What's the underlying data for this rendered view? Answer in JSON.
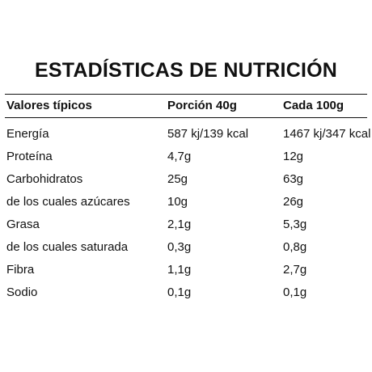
{
  "title": "ESTADÍSTICAS DE NUTRICIÓN",
  "table": {
    "headers": [
      "Valores típicos",
      "Porción 40g",
      "Cada 100g"
    ],
    "rows": [
      [
        "Energía",
        "587 kj/139 kcal",
        "1467 kj/347 kcal"
      ],
      [
        "Proteína",
        "4,7g",
        "12g"
      ],
      [
        "Carbohidratos",
        "25g",
        "63g"
      ],
      [
        "de los cuales azúcares",
        "10g",
        "26g"
      ],
      [
        "Grasa",
        "2,1g",
        "5,3g"
      ],
      [
        "de los cuales saturada",
        "0,3g",
        "0,8g"
      ],
      [
        "Fibra",
        "1,1g",
        "2,7g"
      ],
      [
        "Sodio",
        "0,1g",
        "0,1g"
      ]
    ]
  }
}
